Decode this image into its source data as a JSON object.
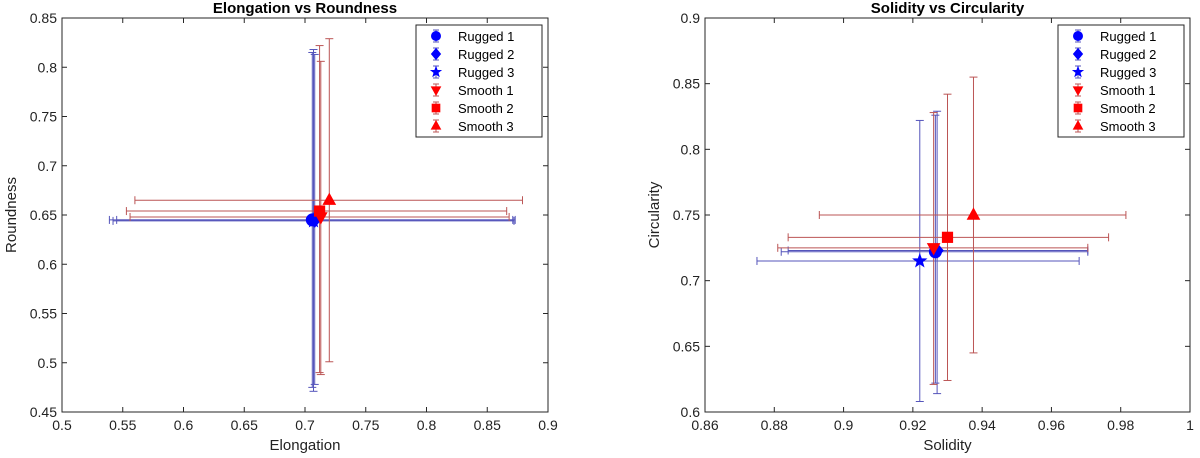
{
  "chart_data": [
    {
      "type": "scatter",
      "title": "Elongation vs Roundness",
      "xlabel": "Elongation",
      "ylabel": "Roundness",
      "xlim": [
        0.5,
        0.9
      ],
      "ylim": [
        0.45,
        0.85
      ],
      "xticks": [
        "0.5",
        "0.55",
        "0.6",
        "0.65",
        "0.7",
        "0.75",
        "0.8",
        "0.85",
        "0.9"
      ],
      "yticks": [
        "0.45",
        "0.5",
        "0.55",
        "0.6",
        "0.65",
        "0.7",
        "0.75",
        "0.8",
        "0.85"
      ],
      "grid": false,
      "legend": "top-right",
      "series": [
        {
          "name": "Rugged 1",
          "marker": "circle",
          "color": "#0000ff",
          "errcolor": "#5555bb",
          "x": 0.706,
          "y": 0.645,
          "xerr": [
            0.539,
            0.873
          ],
          "yerr": [
            0.475,
            0.815
          ]
        },
        {
          "name": "Rugged 2",
          "marker": "diamond",
          "color": "#0000ff",
          "errcolor": "#5555bb",
          "x": 0.708,
          "y": 0.645,
          "xerr": [
            0.545,
            0.871
          ],
          "yerr": [
            0.478,
            0.813
          ]
        },
        {
          "name": "Rugged 3",
          "marker": "star",
          "color": "#0000ff",
          "errcolor": "#5555bb",
          "x": 0.707,
          "y": 0.644,
          "xerr": [
            0.542,
            0.872
          ],
          "yerr": [
            0.471,
            0.818
          ]
        },
        {
          "name": "Smooth 1",
          "marker": "triangle-down",
          "color": "#ff0000",
          "errcolor": "#bb5555",
          "x": 0.713,
          "y": 0.648,
          "xerr": [
            0.556,
            0.868
          ],
          "yerr": [
            0.488,
            0.806
          ]
        },
        {
          "name": "Smooth 2",
          "marker": "square",
          "color": "#ff0000",
          "errcolor": "#bb5555",
          "x": 0.712,
          "y": 0.654,
          "xerr": [
            0.553,
            0.866
          ],
          "yerr": [
            0.49,
            0.822
          ]
        },
        {
          "name": "Smooth 3",
          "marker": "triangle-up",
          "color": "#ff0000",
          "errcolor": "#bb5555",
          "x": 0.72,
          "y": 0.665,
          "xerr": [
            0.56,
            0.879
          ],
          "yerr": [
            0.501,
            0.829
          ]
        }
      ]
    },
    {
      "type": "scatter",
      "title": "Solidity vs Circularity",
      "xlabel": "Solidity",
      "ylabel": "Circularity",
      "xlim": [
        0.86,
        1.0
      ],
      "ylim": [
        0.6,
        0.9
      ],
      "xticks": [
        "0.86",
        "0.88",
        "0.9",
        "0.92",
        "0.94",
        "0.96",
        "0.98",
        "1"
      ],
      "yticks": [
        "0.6",
        "0.65",
        "0.7",
        "0.75",
        "0.8",
        "0.85",
        "0.9"
      ],
      "grid": false,
      "legend": "top-right",
      "series": [
        {
          "name": "Rugged 1",
          "marker": "circle",
          "color": "#0000ff",
          "errcolor": "#5555bb",
          "x": 0.9265,
          "y": 0.722,
          "xerr": [
            0.882,
            0.9705
          ],
          "yerr": [
            0.622,
            0.826
          ]
        },
        {
          "name": "Rugged 2",
          "marker": "diamond",
          "color": "#0000ff",
          "errcolor": "#5555bb",
          "x": 0.927,
          "y": 0.723,
          "xerr": [
            0.884,
            0.9705
          ],
          "yerr": [
            0.614,
            0.829
          ]
        },
        {
          "name": "Rugged 3",
          "marker": "star",
          "color": "#0000ff",
          "errcolor": "#5555bb",
          "x": 0.922,
          "y": 0.715,
          "xerr": [
            0.875,
            0.968
          ],
          "yerr": [
            0.608,
            0.822
          ]
        },
        {
          "name": "Smooth 1",
          "marker": "triangle-down",
          "color": "#ff0000",
          "errcolor": "#bb5555",
          "x": 0.926,
          "y": 0.725,
          "xerr": [
            0.881,
            0.9705
          ],
          "yerr": [
            0.621,
            0.828
          ]
        },
        {
          "name": "Smooth 2",
          "marker": "square",
          "color": "#ff0000",
          "errcolor": "#bb5555",
          "x": 0.93,
          "y": 0.733,
          "xerr": [
            0.884,
            0.9765
          ],
          "yerr": [
            0.624,
            0.842
          ]
        },
        {
          "name": "Smooth 3",
          "marker": "triangle-up",
          "color": "#ff0000",
          "errcolor": "#bb5555",
          "x": 0.9375,
          "y": 0.75,
          "xerr": [
            0.893,
            0.9815
          ],
          "yerr": [
            0.645,
            0.855
          ]
        }
      ]
    }
  ]
}
